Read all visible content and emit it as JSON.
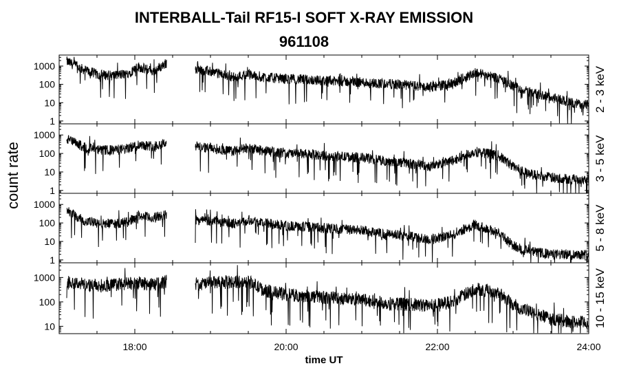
{
  "title": "INTERBALL-Tail RF15-I SOFT X-RAY EMISSION",
  "subtitle": "961108",
  "chart_data": {
    "type": "line",
    "xlabel": "time UT",
    "ylabel": "count rate",
    "x_unit": "hours UT",
    "xlim": [
      17.0,
      24.0
    ],
    "x_ticks": [
      18,
      20,
      22,
      24
    ],
    "x_tick_labels": [
      "18:00",
      "20:00",
      "22:00",
      "24:00"
    ],
    "y_scale": "log",
    "grid": false,
    "legend": "none",
    "line_color": "#000000",
    "data_gaps": [
      [
        17.0,
        17.1
      ],
      [
        18.42,
        18.8
      ]
    ],
    "panels": [
      {
        "name": "2 - 3 keV",
        "ylim": [
          0.7,
          4000
        ],
        "y_ticks": [
          1,
          10,
          100,
          1000
        ],
        "y_tick_labels": [
          "1",
          "10",
          "100",
          "1000"
        ],
        "x": [
          17.1,
          17.3,
          17.5,
          17.7,
          17.9,
          18.05,
          18.25,
          18.42,
          18.8,
          19.0,
          19.3,
          19.5,
          19.7,
          20.0,
          20.3,
          20.6,
          21.0,
          21.3,
          21.6,
          21.9,
          22.2,
          22.5,
          22.8,
          23.0,
          23.2,
          23.5,
          23.8,
          24.0
        ],
        "values": [
          1800,
          700,
          350,
          300,
          380,
          900,
          500,
          1500,
          700,
          500,
          250,
          350,
          250,
          200,
          180,
          150,
          130,
          110,
          90,
          70,
          110,
          450,
          230,
          80,
          40,
          20,
          9,
          8
        ]
      },
      {
        "name": "3 - 5 keV",
        "ylim": [
          0.7,
          4000
        ],
        "y_ticks": [
          1,
          10,
          100,
          1000
        ],
        "y_tick_labels": [
          "1",
          "10",
          "100",
          "1000"
        ],
        "x": [
          17.1,
          17.3,
          17.5,
          17.7,
          17.9,
          18.05,
          18.25,
          18.42,
          18.8,
          19.0,
          19.3,
          19.5,
          19.7,
          20.0,
          20.3,
          20.6,
          21.0,
          21.3,
          21.6,
          21.9,
          22.2,
          22.5,
          22.8,
          23.0,
          23.2,
          23.5,
          23.8,
          24.0
        ],
        "values": [
          600,
          250,
          150,
          150,
          180,
          300,
          250,
          400,
          250,
          200,
          130,
          200,
          140,
          100,
          90,
          70,
          60,
          40,
          30,
          20,
          40,
          130,
          80,
          20,
          8,
          5,
          4,
          4
        ]
      },
      {
        "name": "5 - 8 keV",
        "ylim": [
          0.7,
          4000
        ],
        "y_ticks": [
          1,
          10,
          100,
          1000
        ],
        "y_tick_labels": [
          "1",
          "10",
          "100",
          "1000"
        ],
        "x": [
          17.1,
          17.3,
          17.5,
          17.7,
          17.9,
          18.05,
          18.25,
          18.42,
          18.8,
          19.0,
          19.3,
          19.5,
          19.7,
          20.0,
          20.3,
          20.6,
          21.0,
          21.3,
          21.6,
          21.9,
          22.2,
          22.5,
          22.8,
          23.0,
          23.2,
          23.5,
          23.8,
          24.0
        ],
        "values": [
          500,
          150,
          90,
          90,
          110,
          250,
          180,
          300,
          150,
          130,
          90,
          150,
          100,
          70,
          60,
          50,
          40,
          25,
          20,
          12,
          25,
          80,
          30,
          6,
          3,
          2,
          2,
          2
        ]
      },
      {
        "name": "10 - 15 keV",
        "ylim": [
          5,
          4000
        ],
        "y_ticks": [
          10,
          100,
          1000
        ],
        "y_tick_labels": [
          "10",
          "100",
          "1000"
        ],
        "x": [
          17.1,
          17.3,
          17.5,
          17.7,
          17.9,
          18.05,
          18.25,
          18.42,
          18.8,
          19.0,
          19.3,
          19.5,
          19.7,
          20.0,
          20.3,
          20.6,
          21.0,
          21.3,
          21.6,
          21.9,
          22.2,
          22.5,
          22.8,
          23.0,
          23.2,
          23.5,
          23.8,
          24.0
        ],
        "values": [
          700,
          550,
          450,
          500,
          550,
          600,
          500,
          700,
          500,
          600,
          650,
          700,
          300,
          200,
          170,
          150,
          120,
          90,
          80,
          70,
          100,
          350,
          250,
          80,
          40,
          20,
          15,
          14
        ]
      }
    ]
  }
}
